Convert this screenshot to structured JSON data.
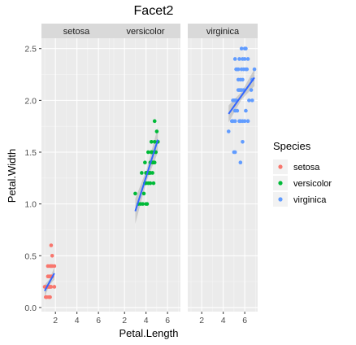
{
  "chart_data": {
    "type": "scatter",
    "title": "Facet2",
    "xlabel": "Petal.Length",
    "ylabel": "Petal.Width",
    "xlim": [
      0.7,
      7.2
    ],
    "ylim": [
      -0.04,
      2.6
    ],
    "x_ticks": [
      2,
      4,
      6
    ],
    "x_tick_labels": [
      "2",
      "4",
      "6"
    ],
    "y_ticks": [
      0.0,
      0.5,
      1.0,
      1.5,
      2.0,
      2.5
    ],
    "y_tick_labels": [
      "0.0",
      "0.5",
      "1.0",
      "1.5",
      "2.0",
      "2.5"
    ],
    "grid": true,
    "smooth": "lm with confidence band",
    "legend": {
      "title": "Species",
      "placement": "right",
      "entries": [
        {
          "label": "setosa",
          "color": "#f8766d"
        },
        {
          "label": "versicolor",
          "color": "#00ba38"
        },
        {
          "label": "virginica",
          "color": "#619cff"
        }
      ]
    },
    "facets": [
      {
        "name": "setosa",
        "color": "#f8766d",
        "fit": {
          "x": [
            1.0,
            1.9
          ],
          "y": [
            0.16,
            0.33
          ]
        },
        "points": [
          [
            1.4,
            0.2
          ],
          [
            1.3,
            0.2
          ],
          [
            1.5,
            0.2
          ],
          [
            1.7,
            0.4
          ],
          [
            1.4,
            0.3
          ],
          [
            1.5,
            0.1
          ],
          [
            1.6,
            0.2
          ],
          [
            1.1,
            0.1
          ],
          [
            1.2,
            0.2
          ],
          [
            1.5,
            0.4
          ],
          [
            1.3,
            0.4
          ],
          [
            1.7,
            0.3
          ],
          [
            1.0,
            0.2
          ],
          [
            1.7,
            0.5
          ],
          [
            1.9,
            0.2
          ],
          [
            1.6,
            0.4
          ],
          [
            1.5,
            0.3
          ],
          [
            1.2,
            0.1
          ],
          [
            1.3,
            0.3
          ],
          [
            1.6,
            0.6
          ],
          [
            1.9,
            0.4
          ],
          [
            1.4,
            0.1
          ],
          [
            1.6,
            0.3
          ],
          [
            1.5,
            0.2
          ],
          [
            1.4,
            0.2
          ],
          [
            1.3,
            0.2
          ]
        ]
      },
      {
        "name": "versicolor",
        "color": "#00ba38",
        "fit": {
          "x": [
            3.0,
            5.1
          ],
          "y": [
            0.93,
            1.62
          ]
        },
        "points": [
          [
            4.7,
            1.4
          ],
          [
            4.5,
            1.5
          ],
          [
            4.9,
            1.5
          ],
          [
            4.0,
            1.3
          ],
          [
            4.6,
            1.5
          ],
          [
            3.3,
            1.0
          ],
          [
            4.6,
            1.3
          ],
          [
            3.9,
            1.4
          ],
          [
            3.5,
            1.0
          ],
          [
            4.2,
            1.5
          ],
          [
            4.0,
            1.0
          ],
          [
            4.7,
            1.4
          ],
          [
            3.6,
            1.3
          ],
          [
            4.4,
            1.4
          ],
          [
            4.5,
            1.5
          ],
          [
            4.1,
            1.0
          ],
          [
            4.8,
            1.8
          ],
          [
            4.0,
            1.3
          ],
          [
            4.9,
            1.5
          ],
          [
            4.7,
            1.2
          ],
          [
            4.3,
            1.3
          ],
          [
            4.8,
            1.4
          ],
          [
            5.0,
            1.7
          ],
          [
            4.5,
            1.5
          ],
          [
            3.8,
            1.1
          ],
          [
            3.7,
            1.0
          ],
          [
            3.9,
            1.2
          ],
          [
            5.1,
            1.6
          ],
          [
            4.5,
            1.6
          ],
          [
            4.4,
            1.3
          ],
          [
            4.1,
            1.3
          ],
          [
            4.0,
            1.2
          ],
          [
            4.4,
            1.2
          ],
          [
            4.6,
            1.4
          ],
          [
            3.0,
            1.1
          ],
          [
            4.2,
            1.3
          ],
          [
            4.2,
            1.2
          ],
          [
            4.3,
            1.3
          ],
          [
            5.1,
            1.6
          ],
          [
            4.8,
            1.6
          ]
        ]
      },
      {
        "name": "virginica",
        "color": "#619cff",
        "fit": {
          "x": [
            4.5,
            6.9
          ],
          "y": [
            1.87,
            2.22
          ]
        },
        "points": [
          [
            6.0,
            2.5
          ],
          [
            5.1,
            1.9
          ],
          [
            5.9,
            2.1
          ],
          [
            5.6,
            1.8
          ],
          [
            5.8,
            2.2
          ],
          [
            6.6,
            2.1
          ],
          [
            4.5,
            1.7
          ],
          [
            6.3,
            1.8
          ],
          [
            5.8,
            1.8
          ],
          [
            6.1,
            2.5
          ],
          [
            5.1,
            2.0
          ],
          [
            5.3,
            1.9
          ],
          [
            5.5,
            2.1
          ],
          [
            5.0,
            2.0
          ],
          [
            5.1,
            2.4
          ],
          [
            5.3,
            2.3
          ],
          [
            5.5,
            1.8
          ],
          [
            6.7,
            2.2
          ],
          [
            6.9,
            2.3
          ],
          [
            5.0,
            1.5
          ],
          [
            5.7,
            2.3
          ],
          [
            4.9,
            2.0
          ],
          [
            6.7,
            2.0
          ],
          [
            4.9,
            1.8
          ],
          [
            5.7,
            2.1
          ],
          [
            6.0,
            1.8
          ],
          [
            4.8,
            1.8
          ],
          [
            5.6,
            2.1
          ],
          [
            5.8,
            1.6
          ],
          [
            6.1,
            1.9
          ],
          [
            6.4,
            2.0
          ],
          [
            5.6,
            2.2
          ],
          [
            5.1,
            1.5
          ],
          [
            5.6,
            1.4
          ],
          [
            6.1,
            2.3
          ],
          [
            5.5,
            2.4
          ],
          [
            5.4,
            2.1
          ],
          [
            5.2,
            2.3
          ],
          [
            5.9,
            2.3
          ],
          [
            5.7,
            2.5
          ],
          [
            5.2,
            2.0
          ],
          [
            5.4,
            2.3
          ],
          [
            5.1,
            1.8
          ],
          [
            6.0,
            2.4
          ],
          [
            6.3,
            2.4
          ],
          [
            5.8,
            2.4
          ],
          [
            6.2,
            2.3
          ],
          [
            5.4,
            2.2
          ]
        ]
      }
    ]
  }
}
